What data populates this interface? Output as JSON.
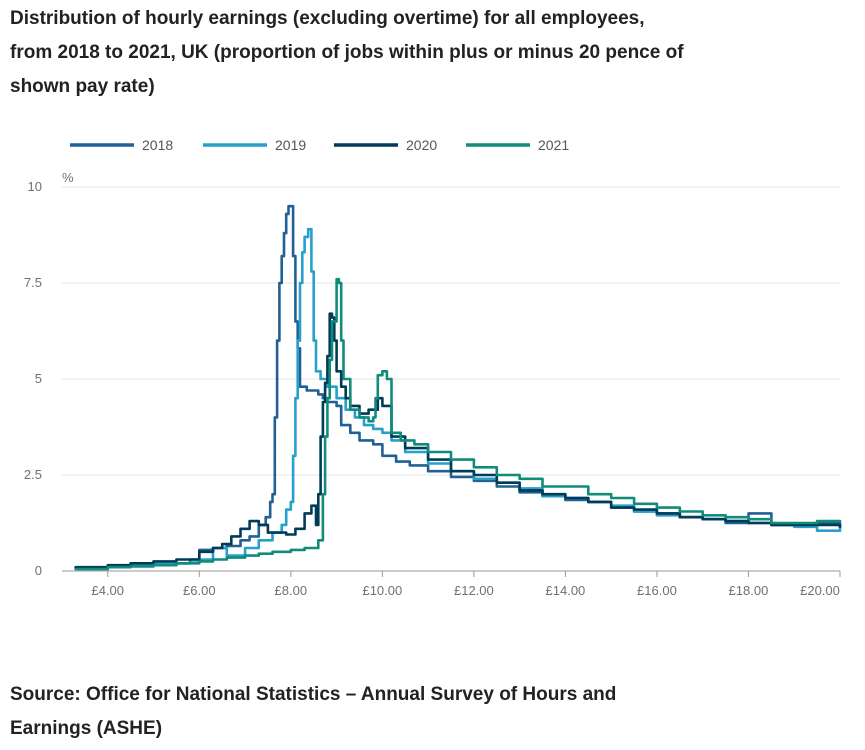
{
  "title_lines": [
    "Distribution of hourly earnings (excluding overtime) for all employees,",
    "from 2018 to 2021, UK (proportion of jobs within plus or minus 20 pence of",
    "shown pay rate)"
  ],
  "source_lines": [
    "Source: Office for National Statistics – Annual Survey of Hours and",
    "Earnings (ASHE)"
  ],
  "chart_data": {
    "type": "line",
    "title": "Distribution of hourly earnings (excluding overtime) for all employees, from 2018 to 2021, UK (proportion of jobs within plus or minus 20 pence of shown pay rate)",
    "ylabel": "%",
    "xlim": [
      3.0,
      20.0
    ],
    "ylim": [
      0,
      10
    ],
    "x_ticks": [
      4,
      6,
      8,
      10,
      12,
      14,
      16,
      18,
      20
    ],
    "x_tick_labels": [
      "£4.00",
      "£6.00",
      "£8.00",
      "£10.00",
      "£12.00",
      "£14.00",
      "£16.00",
      "£18.00",
      "£20.00"
    ],
    "y_ticks": [
      0,
      2.5,
      5,
      7.5,
      10
    ],
    "y_tick_labels": [
      "0",
      "2.5",
      "5",
      "7.5",
      "10"
    ],
    "grid": "horizontal",
    "legend_position": "top-left",
    "series": [
      {
        "name": "2018",
        "color": "#206095",
        "points": [
          [
            3.3,
            0.08
          ],
          [
            4.0,
            0.12
          ],
          [
            4.5,
            0.15
          ],
          [
            5.0,
            0.18
          ],
          [
            5.5,
            0.2
          ],
          [
            5.8,
            0.3
          ],
          [
            6.0,
            0.55
          ],
          [
            6.3,
            0.6
          ],
          [
            6.6,
            0.65
          ],
          [
            6.9,
            0.8
          ],
          [
            7.1,
            0.9
          ],
          [
            7.3,
            1.2
          ],
          [
            7.45,
            1.4
          ],
          [
            7.55,
            1.8
          ],
          [
            7.6,
            2.0
          ],
          [
            7.65,
            4.0
          ],
          [
            7.7,
            6.0
          ],
          [
            7.75,
            7.5
          ],
          [
            7.8,
            8.2
          ],
          [
            7.85,
            8.8
          ],
          [
            7.9,
            9.3
          ],
          [
            7.95,
            9.5
          ],
          [
            8.0,
            9.5
          ],
          [
            8.05,
            8.2
          ],
          [
            8.1,
            6.5
          ],
          [
            8.15,
            5.8
          ],
          [
            8.2,
            4.8
          ],
          [
            8.35,
            4.7
          ],
          [
            8.5,
            4.7
          ],
          [
            8.6,
            4.6
          ],
          [
            8.7,
            4.5
          ],
          [
            8.8,
            4.4
          ],
          [
            9.0,
            4.3
          ],
          [
            9.1,
            3.8
          ],
          [
            9.3,
            3.6
          ],
          [
            9.5,
            3.4
          ],
          [
            9.8,
            3.3
          ],
          [
            10.0,
            3.0
          ],
          [
            10.3,
            2.85
          ],
          [
            10.6,
            2.75
          ],
          [
            11.0,
            2.6
          ],
          [
            11.5,
            2.45
          ],
          [
            12.0,
            2.35
          ],
          [
            12.5,
            2.2
          ],
          [
            13.0,
            2.05
          ],
          [
            13.5,
            1.95
          ],
          [
            14.0,
            1.85
          ],
          [
            14.5,
            1.8
          ],
          [
            15.0,
            1.65
          ],
          [
            15.5,
            1.55
          ],
          [
            16.0,
            1.5
          ],
          [
            16.5,
            1.4
          ],
          [
            17.0,
            1.35
          ],
          [
            17.5,
            1.25
          ],
          [
            18.0,
            1.5
          ],
          [
            18.5,
            1.2
          ],
          [
            19.0,
            1.2
          ],
          [
            19.5,
            1.25
          ],
          [
            20.0,
            1.15
          ]
        ]
      },
      {
        "name": "2019",
        "color": "#27a0cc",
        "points": [
          [
            3.3,
            0.08
          ],
          [
            4.0,
            0.12
          ],
          [
            4.5,
            0.15
          ],
          [
            5.0,
            0.18
          ],
          [
            5.5,
            0.2
          ],
          [
            5.8,
            0.22
          ],
          [
            6.0,
            0.3
          ],
          [
            6.3,
            0.6
          ],
          [
            6.6,
            0.4
          ],
          [
            7.0,
            0.6
          ],
          [
            7.3,
            0.8
          ],
          [
            7.6,
            1.0
          ],
          [
            7.8,
            1.2
          ],
          [
            7.9,
            1.6
          ],
          [
            8.0,
            1.8
          ],
          [
            8.05,
            3.0
          ],
          [
            8.1,
            4.5
          ],
          [
            8.15,
            6.0
          ],
          [
            8.2,
            7.5
          ],
          [
            8.25,
            8.3
          ],
          [
            8.3,
            8.7
          ],
          [
            8.38,
            8.9
          ],
          [
            8.45,
            7.8
          ],
          [
            8.5,
            6.0
          ],
          [
            8.55,
            5.2
          ],
          [
            8.65,
            5.0
          ],
          [
            8.8,
            4.8
          ],
          [
            9.0,
            4.5
          ],
          [
            9.2,
            4.2
          ],
          [
            9.4,
            4.0
          ],
          [
            9.6,
            3.8
          ],
          [
            9.8,
            3.7
          ],
          [
            10.0,
            3.6
          ],
          [
            10.2,
            3.4
          ],
          [
            10.5,
            3.1
          ],
          [
            11.0,
            2.8
          ],
          [
            11.5,
            2.6
          ],
          [
            12.0,
            2.4
          ],
          [
            12.5,
            2.3
          ],
          [
            13.0,
            2.15
          ],
          [
            13.5,
            1.95
          ],
          [
            14.0,
            1.9
          ],
          [
            14.5,
            1.8
          ],
          [
            15.0,
            1.7
          ],
          [
            15.5,
            1.55
          ],
          [
            16.0,
            1.45
          ],
          [
            16.5,
            1.4
          ],
          [
            17.0,
            1.35
          ],
          [
            17.5,
            1.3
          ],
          [
            18.0,
            1.25
          ],
          [
            18.5,
            1.2
          ],
          [
            19.0,
            1.15
          ],
          [
            19.5,
            1.05
          ],
          [
            20.0,
            1.2
          ]
        ]
      },
      {
        "name": "2020",
        "color": "#003c57",
        "points": [
          [
            3.3,
            0.1
          ],
          [
            4.0,
            0.15
          ],
          [
            4.5,
            0.2
          ],
          [
            5.0,
            0.25
          ],
          [
            5.5,
            0.3
          ],
          [
            6.0,
            0.5
          ],
          [
            6.3,
            0.6
          ],
          [
            6.5,
            0.7
          ],
          [
            6.7,
            0.9
          ],
          [
            6.9,
            1.1
          ],
          [
            7.1,
            1.3
          ],
          [
            7.3,
            1.2
          ],
          [
            7.5,
            1.0
          ],
          [
            7.7,
            1.0
          ],
          [
            7.9,
            0.95
          ],
          [
            8.1,
            1.1
          ],
          [
            8.3,
            1.5
          ],
          [
            8.45,
            1.7
          ],
          [
            8.55,
            1.2
          ],
          [
            8.6,
            2.0
          ],
          [
            8.65,
            3.5
          ],
          [
            8.7,
            4.4
          ],
          [
            8.75,
            4.9
          ],
          [
            8.8,
            5.6
          ],
          [
            8.85,
            6.7
          ],
          [
            8.9,
            6.6
          ],
          [
            8.95,
            6.0
          ],
          [
            9.0,
            5.2
          ],
          [
            9.1,
            4.8
          ],
          [
            9.2,
            4.5
          ],
          [
            9.3,
            4.3
          ],
          [
            9.5,
            4.1
          ],
          [
            9.7,
            4.2
          ],
          [
            9.9,
            4.5
          ],
          [
            10.0,
            4.3
          ],
          [
            10.2,
            3.5
          ],
          [
            10.5,
            3.2
          ],
          [
            11.0,
            2.9
          ],
          [
            11.5,
            2.6
          ],
          [
            12.0,
            2.5
          ],
          [
            12.5,
            2.3
          ],
          [
            13.0,
            2.1
          ],
          [
            13.5,
            2.0
          ],
          [
            14.0,
            1.9
          ],
          [
            14.5,
            1.8
          ],
          [
            15.0,
            1.65
          ],
          [
            15.5,
            1.6
          ],
          [
            16.0,
            1.5
          ],
          [
            16.5,
            1.4
          ],
          [
            17.0,
            1.35
          ],
          [
            17.5,
            1.3
          ],
          [
            18.0,
            1.25
          ],
          [
            18.5,
            1.2
          ],
          [
            19.0,
            1.2
          ],
          [
            19.5,
            1.2
          ],
          [
            20.0,
            1.15
          ]
        ]
      },
      {
        "name": "2021",
        "color": "#118c7b",
        "points": [
          [
            3.3,
            0.05
          ],
          [
            4.0,
            0.1
          ],
          [
            4.5,
            0.12
          ],
          [
            5.0,
            0.15
          ],
          [
            5.5,
            0.2
          ],
          [
            6.0,
            0.25
          ],
          [
            6.3,
            0.3
          ],
          [
            6.6,
            0.35
          ],
          [
            7.0,
            0.4
          ],
          [
            7.3,
            0.45
          ],
          [
            7.6,
            0.5
          ],
          [
            8.0,
            0.55
          ],
          [
            8.3,
            0.6
          ],
          [
            8.6,
            0.8
          ],
          [
            8.7,
            2.0
          ],
          [
            8.75,
            3.5
          ],
          [
            8.8,
            4.5
          ],
          [
            8.85,
            5.5
          ],
          [
            8.9,
            6.5
          ],
          [
            9.0,
            7.6
          ],
          [
            9.05,
            7.5
          ],
          [
            9.1,
            6.0
          ],
          [
            9.15,
            5.0
          ],
          [
            9.3,
            4.2
          ],
          [
            9.5,
            4.0
          ],
          [
            9.7,
            3.9
          ],
          [
            9.8,
            4.0
          ],
          [
            9.85,
            4.5
          ],
          [
            9.9,
            5.1
          ],
          [
            10.0,
            5.2
          ],
          [
            10.1,
            5.0
          ],
          [
            10.2,
            3.6
          ],
          [
            10.4,
            3.4
          ],
          [
            10.7,
            3.3
          ],
          [
            11.0,
            3.1
          ],
          [
            11.5,
            2.9
          ],
          [
            12.0,
            2.7
          ],
          [
            12.5,
            2.5
          ],
          [
            13.0,
            2.4
          ],
          [
            13.5,
            2.2
          ],
          [
            14.0,
            2.2
          ],
          [
            14.5,
            2.0
          ],
          [
            15.0,
            1.9
          ],
          [
            15.5,
            1.75
          ],
          [
            16.0,
            1.65
          ],
          [
            16.5,
            1.55
          ],
          [
            17.0,
            1.45
          ],
          [
            17.5,
            1.4
          ],
          [
            18.0,
            1.35
          ],
          [
            18.5,
            1.25
          ],
          [
            19.0,
            1.25
          ],
          [
            19.5,
            1.3
          ],
          [
            20.0,
            1.3
          ]
        ]
      }
    ]
  }
}
